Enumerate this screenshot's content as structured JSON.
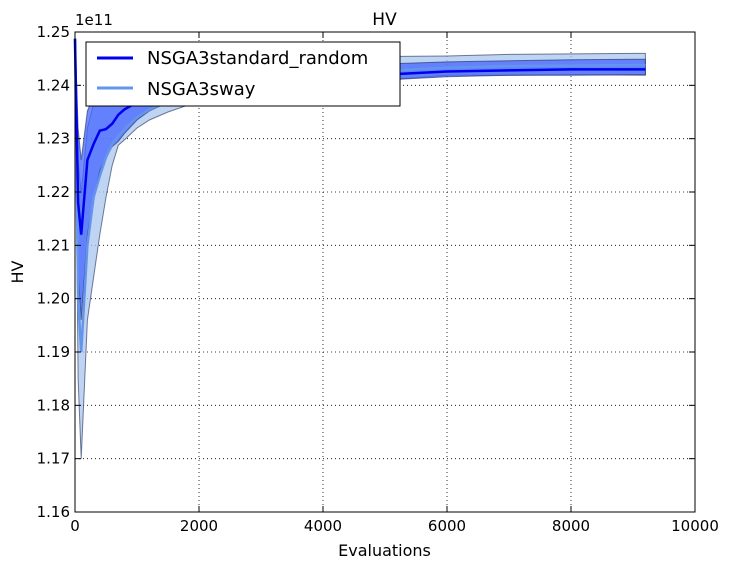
{
  "chart_data": {
    "type": "line",
    "title": "HV",
    "xlabel": "Evaluations",
    "ylabel": "HV",
    "y_scale_note": "1e11",
    "xlim": [
      0,
      10000
    ],
    "ylim": [
      1.16,
      1.25
    ],
    "xticks": [
      0,
      2000,
      4000,
      6000,
      8000,
      10000
    ],
    "yticks": [
      1.16,
      1.17,
      1.18,
      1.19,
      1.2,
      1.21,
      1.22,
      1.23,
      1.24,
      1.25
    ],
    "xtick_labels": [
      "0",
      "2000",
      "4000",
      "6000",
      "8000",
      "10000"
    ],
    "ytick_labels": [
      "1.16",
      "1.17",
      "1.18",
      "1.19",
      "1.20",
      "1.21",
      "1.22",
      "1.23",
      "1.24",
      "1.25"
    ],
    "grid": true,
    "legend_position": "top-left",
    "series": [
      {
        "name": "NSGA3standard_random",
        "color": "#0000ee",
        "band_color": "#4466ff",
        "x": [
          0,
          50,
          100,
          200,
          300,
          400,
          500,
          600,
          700,
          800,
          1000,
          1200,
          1500,
          2000,
          3000,
          4000,
          5000,
          6000,
          7000,
          8000,
          9200
        ],
        "y": [
          1.2487,
          1.218,
          1.212,
          1.226,
          1.229,
          1.2315,
          1.2318,
          1.2328,
          1.2345,
          1.2355,
          1.2368,
          1.2378,
          1.2388,
          1.2398,
          1.2408,
          1.2415,
          1.242,
          1.2426,
          1.2428,
          1.243,
          1.243
        ],
        "lower": [
          1.2487,
          1.205,
          1.196,
          1.212,
          1.219,
          1.224,
          1.2265,
          1.2285,
          1.2295,
          1.231,
          1.2335,
          1.2352,
          1.2368,
          1.238,
          1.2392,
          1.2402,
          1.241,
          1.2416,
          1.2419,
          1.2419,
          1.242
        ],
        "upper": [
          1.2489,
          1.232,
          1.226,
          1.2352,
          1.238,
          1.2387,
          1.2392,
          1.2396,
          1.2402,
          1.2405,
          1.2412,
          1.2418,
          1.2423,
          1.2428,
          1.2433,
          1.2437,
          1.244,
          1.2444,
          1.2446,
          1.2448,
          1.2449
        ]
      },
      {
        "name": "NSGA3sway",
        "color": "#6495ed",
        "band_color": "#aac4ee",
        "x": [
          0,
          50,
          100,
          200,
          300,
          400,
          500,
          600,
          700,
          800,
          1000,
          1200,
          1500,
          2000,
          3000,
          4000,
          5000,
          6000,
          7000,
          8000,
          9200
        ],
        "y": [
          1.2488,
          1.2,
          1.19,
          1.21,
          1.219,
          1.223,
          1.2265,
          1.229,
          1.2305,
          1.2318,
          1.234,
          1.2355,
          1.237,
          1.2388,
          1.2405,
          1.2418,
          1.2427,
          1.2433,
          1.2436,
          1.2437,
          1.2438
        ],
        "lower": [
          1.2487,
          1.185,
          1.17,
          1.196,
          1.204,
          1.212,
          1.219,
          1.225,
          1.2288,
          1.2298,
          1.232,
          1.2335,
          1.235,
          1.237,
          1.2388,
          1.2398,
          1.241,
          1.2419,
          1.2419,
          1.242,
          1.2419
        ],
        "upper": [
          1.2489,
          1.226,
          1.2197,
          1.232,
          1.2365,
          1.2383,
          1.239,
          1.2395,
          1.2405,
          1.2412,
          1.242,
          1.2428,
          1.2435,
          1.2442,
          1.2448,
          1.2452,
          1.2454,
          1.2455,
          1.2458,
          1.2459,
          1.246
        ]
      }
    ]
  }
}
